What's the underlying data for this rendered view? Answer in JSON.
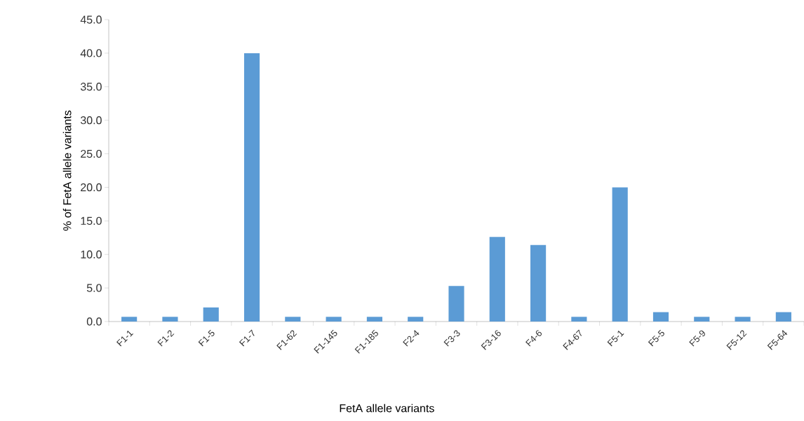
{
  "chart_data": {
    "type": "bar",
    "xlabel": "FetA allele variants",
    "ylabel": "% of FetA allele variants",
    "categories": [
      "F1-1",
      "F1-2",
      "F1-5",
      "F1-7",
      "F1-62",
      "F1-145",
      "F1-185",
      "F2-4",
      "F3-3",
      "F3-16",
      "F4-6",
      "F4-67",
      "F5-1",
      "F5-5",
      "F5-9",
      "F5-12",
      "F5-64"
    ],
    "values": [
      0.7,
      0.7,
      2.1,
      40.0,
      0.7,
      0.7,
      0.7,
      0.7,
      5.3,
      12.6,
      11.4,
      0.7,
      20.0,
      1.4,
      0.7,
      0.7,
      1.4
    ],
    "color": "#5b9bd5",
    "ylim": [
      0,
      45
    ],
    "yticks": [
      {
        "value": 0,
        "label": "0.0"
      },
      {
        "value": 5,
        "label": "5.0"
      },
      {
        "value": 10,
        "label": "10.0"
      },
      {
        "value": 15,
        "label": "15.0"
      },
      {
        "value": 20,
        "label": "20.0"
      },
      {
        "value": 25,
        "label": "25.0"
      },
      {
        "value": 30,
        "label": "30.0"
      },
      {
        "value": 35,
        "label": "35.0"
      },
      {
        "value": 40,
        "label": "40.0"
      },
      {
        "value": 45,
        "label": "45.0"
      }
    ],
    "grid": false
  }
}
